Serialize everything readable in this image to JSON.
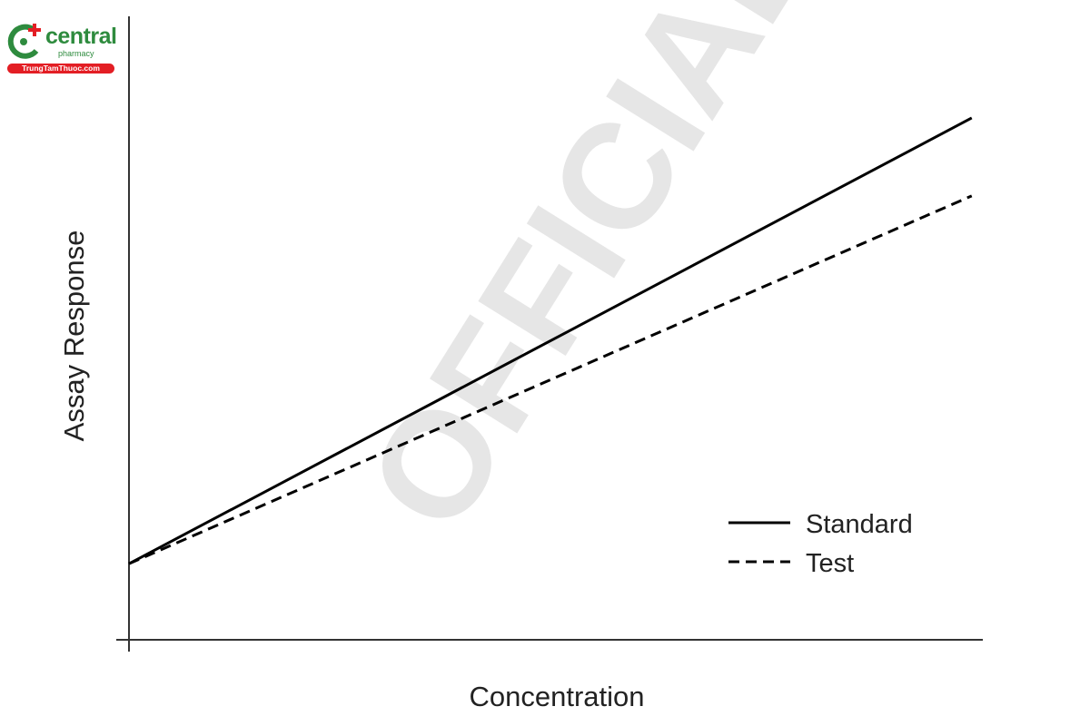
{
  "logo": {
    "name": "central",
    "sub": "pharmacy",
    "site": "TrungTamThuoc.com",
    "colors": {
      "green": "#2e8b3e",
      "red": "#e31e24"
    }
  },
  "watermark": "OFFICIAL",
  "chart_data": {
    "type": "line",
    "title": "",
    "xlabel": "Concentration",
    "ylabel": "Assay Response",
    "xlim": [
      0,
      1
    ],
    "ylim": [
      0,
      1
    ],
    "ticks": "none",
    "grid": false,
    "legend_position": "bottom-right",
    "series": [
      {
        "name": "Standard",
        "style": "solid",
        "color": "#000000",
        "x": [
          0,
          0.987
        ],
        "y": [
          0.122,
          0.837
        ]
      },
      {
        "name": "Test",
        "style": "dashed",
        "color": "#000000",
        "x": [
          0,
          0.987
        ],
        "y": [
          0.122,
          0.712
        ]
      }
    ]
  }
}
